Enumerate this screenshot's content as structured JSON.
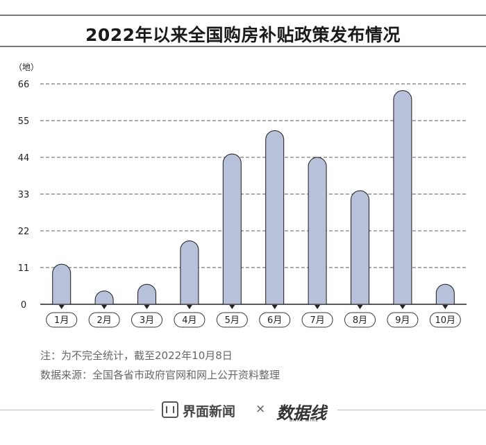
{
  "title": "2022年以来全国购房补贴政策发布情况",
  "chart_data": {
    "type": "bar",
    "title": "2022年以来全国购房补贴政策发布情况",
    "ylabel": "（地）",
    "xlabel": "",
    "categories": [
      "1月",
      "2月",
      "3月",
      "4月",
      "5月",
      "6月",
      "7月",
      "8月",
      "9月",
      "10月"
    ],
    "values": [
      12,
      4,
      6,
      19,
      45,
      52,
      44,
      34,
      64,
      6
    ],
    "yticks": [
      "0",
      "11",
      "22",
      "33",
      "44",
      "55",
      "66"
    ],
    "ylim": [
      0,
      66
    ],
    "grid": true,
    "colors": {
      "bar": "#b7c1d9",
      "bar_stroke": "#1a1a1a",
      "grid": "#555555",
      "axis": "#222222"
    }
  },
  "notes": [
    "注：为不完全统计，截至2022年10月8日",
    "数据来源：全国各省市政府官网和网上公开资料整理"
  ],
  "footer": {
    "brand_label": "界面新闻",
    "times_label": "×",
    "brand2_label": "数据线",
    "brand2_sub": "DATA WIRE"
  },
  "icons": {
    "brand_logo": "jiemian-logo-icon"
  }
}
